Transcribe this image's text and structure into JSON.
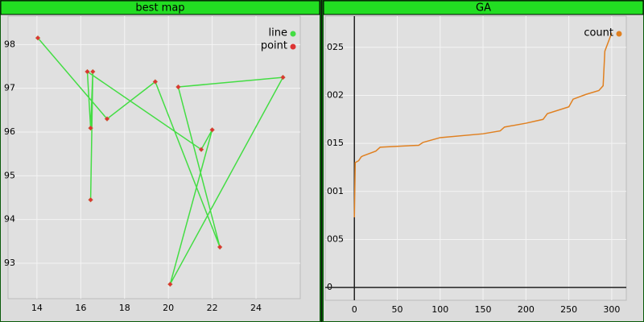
{
  "chart_data": [
    {
      "type": "line",
      "title": "best map",
      "series": [
        {
          "name": "line",
          "type": "line",
          "color": "#44dd44",
          "x": [
            14.04,
            17.2,
            19.4,
            22.35,
            20.45,
            25.23,
            20.08,
            22.0,
            21.5,
            16.3,
            16.45,
            16.55,
            16.45
          ],
          "values": [
            98.15,
            96.3,
            97.15,
            93.37,
            97.03,
            97.25,
            92.52,
            96.05,
            95.6,
            97.38,
            96.09,
            97.38,
            94.45
          ]
        },
        {
          "name": "point",
          "type": "scatter",
          "color": "#dd3333",
          "x": [
            14.04,
            16.3,
            16.55,
            16.45,
            17.2,
            19.4,
            20.45,
            25.23,
            20.08,
            16.45,
            21.5,
            22.0,
            22.35
          ],
          "values": [
            98.15,
            97.38,
            97.38,
            96.09,
            96.3,
            97.15,
            97.03,
            97.25,
            92.52,
            94.45,
            95.6,
            96.05,
            93.37
          ]
        }
      ],
      "xlim": [
        12.68,
        26.02
      ],
      "ylim": [
        92.19,
        98.65
      ],
      "xticks": [
        14,
        16,
        18,
        20,
        22,
        24
      ],
      "yticks": [
        93,
        94,
        95,
        96,
        97,
        98
      ],
      "grid": true,
      "legend": "upper right"
    },
    {
      "type": "line",
      "title": "GA",
      "series": [
        {
          "name": "count",
          "type": "line",
          "color": "#e08020",
          "x": [
            0,
            1,
            5,
            8,
            10,
            25,
            30,
            50,
            75,
            80,
            100,
            150,
            170,
            175,
            200,
            220,
            225,
            250,
            255,
            270,
            285,
            290,
            292,
            300
          ],
          "values": [
            0.0073,
            0.013,
            0.0132,
            0.0136,
            0.0137,
            0.0142,
            0.0146,
            0.0147,
            0.0148,
            0.0151,
            0.0156,
            0.016,
            0.0163,
            0.0167,
            0.0171,
            0.0175,
            0.0181,
            0.0188,
            0.0196,
            0.0201,
            0.0205,
            0.021,
            0.0246,
            0.0265
          ]
        }
      ],
      "xlim": [
        -34,
        317
      ],
      "ylim": [
        -0.00133,
        0.02825
      ],
      "xticks": [
        0,
        50,
        100,
        150,
        200,
        250,
        300
      ],
      "yticks": [
        0,
        {
          "value": 0.005,
          "label": "005"
        },
        {
          "value": 0.01,
          "label": "001"
        },
        {
          "value": 0.015,
          "label": "015"
        },
        {
          "value": 0.02,
          "label": "002"
        },
        {
          "value": 0.025,
          "label": "025"
        }
      ],
      "grid": true,
      "zero_axes": true,
      "legend": "upper right"
    }
  ]
}
